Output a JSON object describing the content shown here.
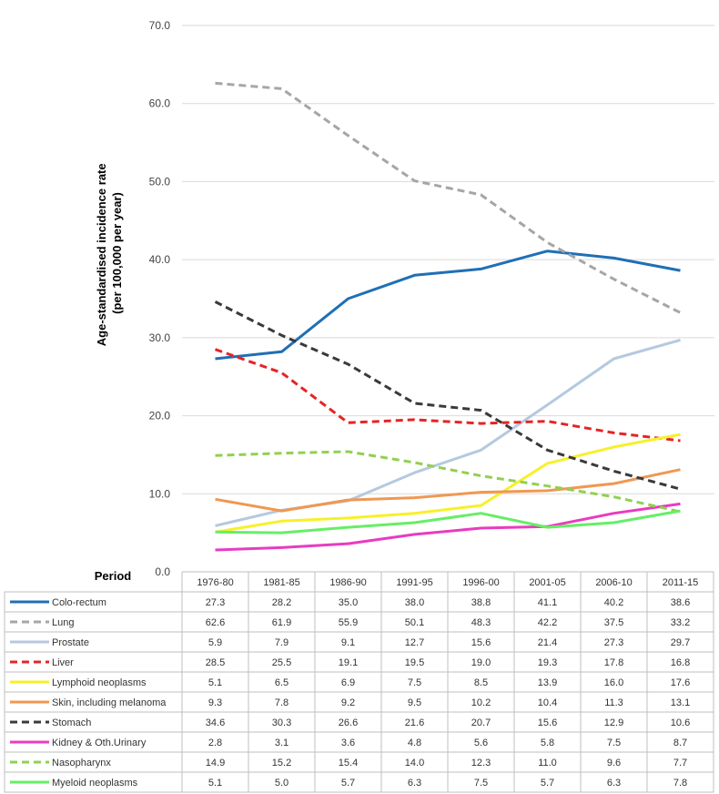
{
  "chart_data": {
    "type": "line",
    "ylabel_line1": "Age-standardised incidence rate",
    "ylabel_line2": "(per 100,000 per year)",
    "table_header": "Period",
    "ylim": [
      0,
      70
    ],
    "yticks": [
      "0.0",
      "10.0",
      "20.0",
      "30.0",
      "40.0",
      "50.0",
      "60.0",
      "70.0"
    ],
    "grid": true,
    "categories": [
      "1976-80",
      "1981-85",
      "1986-90",
      "1991-95",
      "1996-00",
      "2001-05",
      "2006-10",
      "2011-15"
    ],
    "series": [
      {
        "name": "Colo-rectum",
        "color": "#1f6fb5",
        "dash": "solid",
        "values": [
          27.3,
          28.2,
          35.0,
          38.0,
          38.8,
          41.1,
          40.2,
          38.6
        ],
        "labels": [
          "27.3",
          "28.2",
          "35.0",
          "38.0",
          "38.8",
          "41.1",
          "40.2",
          "38.6"
        ]
      },
      {
        "name": "Lung",
        "color": "#a6a6a6",
        "dash": "dashed",
        "values": [
          62.6,
          61.9,
          55.9,
          50.1,
          48.3,
          42.2,
          37.5,
          33.2
        ],
        "labels": [
          "62.6",
          "61.9",
          "55.9",
          "50.1",
          "48.3",
          "42.2",
          "37.5",
          "33.2"
        ]
      },
      {
        "name": "Prostate",
        "color": "#b4c9e0",
        "dash": "solid",
        "values": [
          5.9,
          7.9,
          9.1,
          12.7,
          15.6,
          21.4,
          27.3,
          29.7
        ],
        "labels": [
          "5.9",
          "7.9",
          "9.1",
          "12.7",
          "15.6",
          "21.4",
          "27.3",
          "29.7"
        ]
      },
      {
        "name": "Liver",
        "color": "#e52424",
        "dash": "dashed",
        "values": [
          28.5,
          25.5,
          19.1,
          19.5,
          19.0,
          19.3,
          17.8,
          16.8
        ],
        "labels": [
          "28.5",
          "25.5",
          "19.1",
          "19.5",
          "19.0",
          "19.3",
          "17.8",
          "16.8"
        ]
      },
      {
        "name": "Lymphoid neoplasms",
        "color": "#f7f02a",
        "dash": "solid",
        "values": [
          5.1,
          6.5,
          6.9,
          7.5,
          8.5,
          13.9,
          16.0,
          17.6
        ],
        "labels": [
          "5.1",
          "6.5",
          "6.9",
          "7.5",
          "8.5",
          "13.9",
          "16.0",
          "17.6"
        ]
      },
      {
        "name": "Skin, including melanoma",
        "color": "#ef9852",
        "dash": "solid",
        "values": [
          9.3,
          7.8,
          9.2,
          9.5,
          10.2,
          10.4,
          11.3,
          13.1
        ],
        "labels": [
          "9.3",
          "7.8",
          "9.2",
          "9.5",
          "10.2",
          "10.4",
          "11.3",
          "13.1"
        ]
      },
      {
        "name": "Stomach",
        "color": "#3a3a3a",
        "dash": "dashed",
        "values": [
          34.6,
          30.3,
          26.6,
          21.6,
          20.7,
          15.6,
          12.9,
          10.6
        ],
        "labels": [
          "34.6",
          "30.3",
          "26.6",
          "21.6",
          "20.7",
          "15.6",
          "12.9",
          "10.6"
        ]
      },
      {
        "name": "Kidney & Oth.Urinary",
        "color": "#e93bc0",
        "dash": "solid",
        "values": [
          2.8,
          3.1,
          3.6,
          4.8,
          5.6,
          5.8,
          7.5,
          8.7
        ],
        "labels": [
          "2.8",
          "3.1",
          "3.6",
          "4.8",
          "5.6",
          "5.8",
          "7.5",
          "8.7"
        ]
      },
      {
        "name": "Nasopharynx",
        "color": "#92d050",
        "dash": "dashed",
        "values": [
          14.9,
          15.2,
          15.4,
          14.0,
          12.3,
          11.0,
          9.6,
          7.7
        ],
        "labels": [
          "14.9",
          "15.2",
          "15.4",
          "14.0",
          "12.3",
          "11.0",
          "9.6",
          "7.7"
        ]
      },
      {
        "name": "Myeloid neoplasms",
        "color": "#66ee66",
        "dash": "solid",
        "values": [
          5.1,
          5.0,
          5.7,
          6.3,
          7.5,
          5.7,
          6.3,
          7.8
        ],
        "labels": [
          "5.1",
          "5.0",
          "5.7",
          "6.3",
          "7.5",
          "5.7",
          "6.3",
          "7.8"
        ]
      }
    ]
  }
}
